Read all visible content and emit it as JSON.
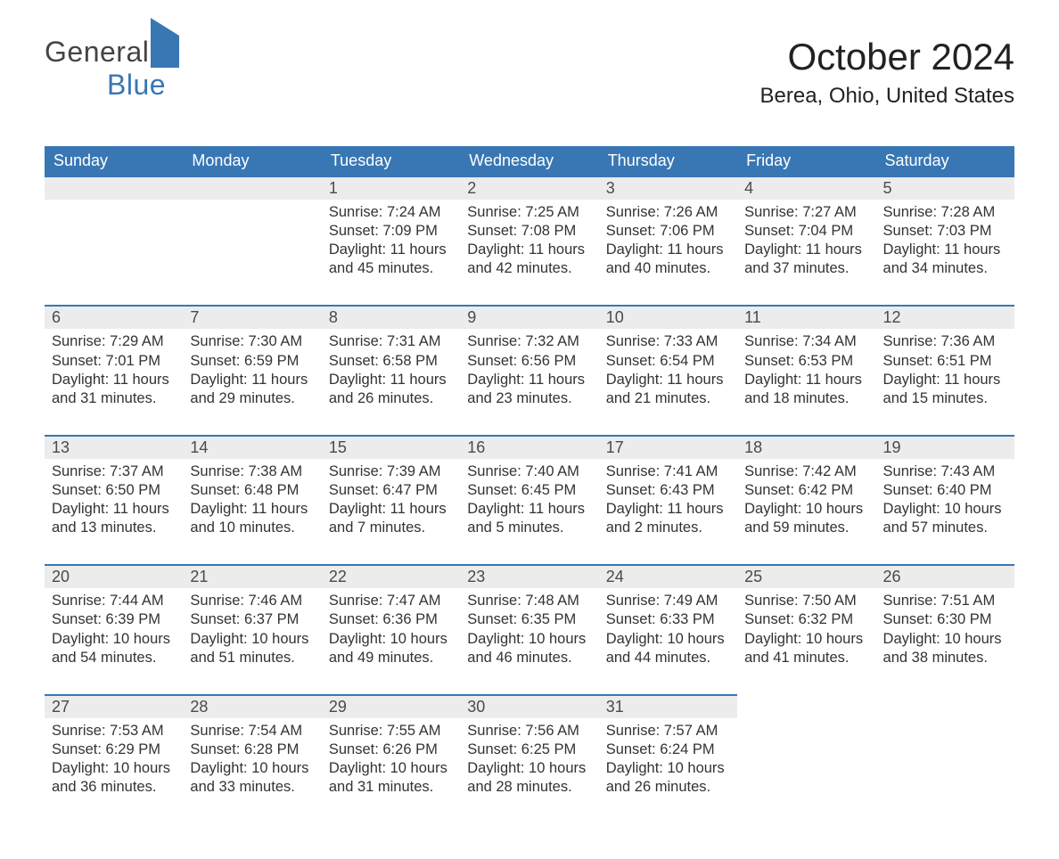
{
  "logo": {
    "part1": "General",
    "part2": "Blue"
  },
  "title": "October 2024",
  "location": "Berea, Ohio, United States",
  "colors": {
    "header_bg": "#3877b4",
    "header_text": "#ffffff",
    "daynum_bg": "#ececec",
    "daynum_border_top": "#3877b4",
    "body_bg": "#ffffff",
    "text": "#333333",
    "title_text": "#222222",
    "logo_dark": "#444444",
    "logo_blue": "#3877b4"
  },
  "typography": {
    "title_fontsize": 42,
    "location_fontsize": 24,
    "header_fontsize": 18,
    "daynum_fontsize": 18,
    "cell_fontsize": 16.5,
    "logo_fontsize": 32
  },
  "days_of_week": [
    "Sunday",
    "Monday",
    "Tuesday",
    "Wednesday",
    "Thursday",
    "Friday",
    "Saturday"
  ],
  "weeks": [
    [
      null,
      null,
      {
        "n": "1",
        "sr": "7:24 AM",
        "ss": "7:09 PM",
        "dl": "11 hours and 45 minutes."
      },
      {
        "n": "2",
        "sr": "7:25 AM",
        "ss": "7:08 PM",
        "dl": "11 hours and 42 minutes."
      },
      {
        "n": "3",
        "sr": "7:26 AM",
        "ss": "7:06 PM",
        "dl": "11 hours and 40 minutes."
      },
      {
        "n": "4",
        "sr": "7:27 AM",
        "ss": "7:04 PM",
        "dl": "11 hours and 37 minutes."
      },
      {
        "n": "5",
        "sr": "7:28 AM",
        "ss": "7:03 PM",
        "dl": "11 hours and 34 minutes."
      }
    ],
    [
      {
        "n": "6",
        "sr": "7:29 AM",
        "ss": "7:01 PM",
        "dl": "11 hours and 31 minutes."
      },
      {
        "n": "7",
        "sr": "7:30 AM",
        "ss": "6:59 PM",
        "dl": "11 hours and 29 minutes."
      },
      {
        "n": "8",
        "sr": "7:31 AM",
        "ss": "6:58 PM",
        "dl": "11 hours and 26 minutes."
      },
      {
        "n": "9",
        "sr": "7:32 AM",
        "ss": "6:56 PM",
        "dl": "11 hours and 23 minutes."
      },
      {
        "n": "10",
        "sr": "7:33 AM",
        "ss": "6:54 PM",
        "dl": "11 hours and 21 minutes."
      },
      {
        "n": "11",
        "sr": "7:34 AM",
        "ss": "6:53 PM",
        "dl": "11 hours and 18 minutes."
      },
      {
        "n": "12",
        "sr": "7:36 AM",
        "ss": "6:51 PM",
        "dl": "11 hours and 15 minutes."
      }
    ],
    [
      {
        "n": "13",
        "sr": "7:37 AM",
        "ss": "6:50 PM",
        "dl": "11 hours and 13 minutes."
      },
      {
        "n": "14",
        "sr": "7:38 AM",
        "ss": "6:48 PM",
        "dl": "11 hours and 10 minutes."
      },
      {
        "n": "15",
        "sr": "7:39 AM",
        "ss": "6:47 PM",
        "dl": "11 hours and 7 minutes."
      },
      {
        "n": "16",
        "sr": "7:40 AM",
        "ss": "6:45 PM",
        "dl": "11 hours and 5 minutes."
      },
      {
        "n": "17",
        "sr": "7:41 AM",
        "ss": "6:43 PM",
        "dl": "11 hours and 2 minutes."
      },
      {
        "n": "18",
        "sr": "7:42 AM",
        "ss": "6:42 PM",
        "dl": "10 hours and 59 minutes."
      },
      {
        "n": "19",
        "sr": "7:43 AM",
        "ss": "6:40 PM",
        "dl": "10 hours and 57 minutes."
      }
    ],
    [
      {
        "n": "20",
        "sr": "7:44 AM",
        "ss": "6:39 PM",
        "dl": "10 hours and 54 minutes."
      },
      {
        "n": "21",
        "sr": "7:46 AM",
        "ss": "6:37 PM",
        "dl": "10 hours and 51 minutes."
      },
      {
        "n": "22",
        "sr": "7:47 AM",
        "ss": "6:36 PM",
        "dl": "10 hours and 49 minutes."
      },
      {
        "n": "23",
        "sr": "7:48 AM",
        "ss": "6:35 PM",
        "dl": "10 hours and 46 minutes."
      },
      {
        "n": "24",
        "sr": "7:49 AM",
        "ss": "6:33 PM",
        "dl": "10 hours and 44 minutes."
      },
      {
        "n": "25",
        "sr": "7:50 AM",
        "ss": "6:32 PM",
        "dl": "10 hours and 41 minutes."
      },
      {
        "n": "26",
        "sr": "7:51 AM",
        "ss": "6:30 PM",
        "dl": "10 hours and 38 minutes."
      }
    ],
    [
      {
        "n": "27",
        "sr": "7:53 AM",
        "ss": "6:29 PM",
        "dl": "10 hours and 36 minutes."
      },
      {
        "n": "28",
        "sr": "7:54 AM",
        "ss": "6:28 PM",
        "dl": "10 hours and 33 minutes."
      },
      {
        "n": "29",
        "sr": "7:55 AM",
        "ss": "6:26 PM",
        "dl": "10 hours and 31 minutes."
      },
      {
        "n": "30",
        "sr": "7:56 AM",
        "ss": "6:25 PM",
        "dl": "10 hours and 28 minutes."
      },
      {
        "n": "31",
        "sr": "7:57 AM",
        "ss": "6:24 PM",
        "dl": "10 hours and 26 minutes."
      },
      null,
      null
    ]
  ],
  "labels": {
    "sunrise": "Sunrise: ",
    "sunset": "Sunset: ",
    "daylight": "Daylight: "
  }
}
